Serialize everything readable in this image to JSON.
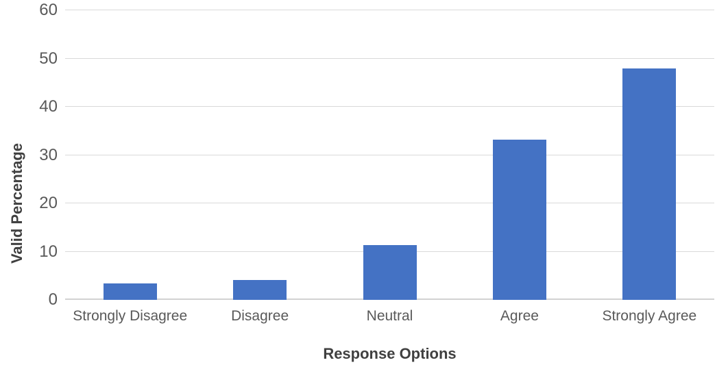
{
  "chart_data": {
    "type": "bar",
    "title": "",
    "categories": [
      "Strongly Disagree",
      "Disagree",
      "Neutral",
      "Agree",
      "Strongly Agree"
    ],
    "values": [
      3.4,
      4.1,
      11.4,
      33.2,
      47.9
    ],
    "xlabel": "Response Options",
    "ylabel": "Valid Percentage",
    "ylim": [
      0,
      60
    ],
    "yticks": [
      0,
      10,
      20,
      30,
      40,
      50,
      60
    ],
    "grid": "horizontal-only",
    "legend": "none",
    "colors": {
      "bar": "#4472C4",
      "gridline": "#D9D9D9",
      "axis_line": "#D2D2D2",
      "tick_text": "#595959",
      "axis_title_text": "#404040",
      "background": "#FFFFFF"
    }
  }
}
